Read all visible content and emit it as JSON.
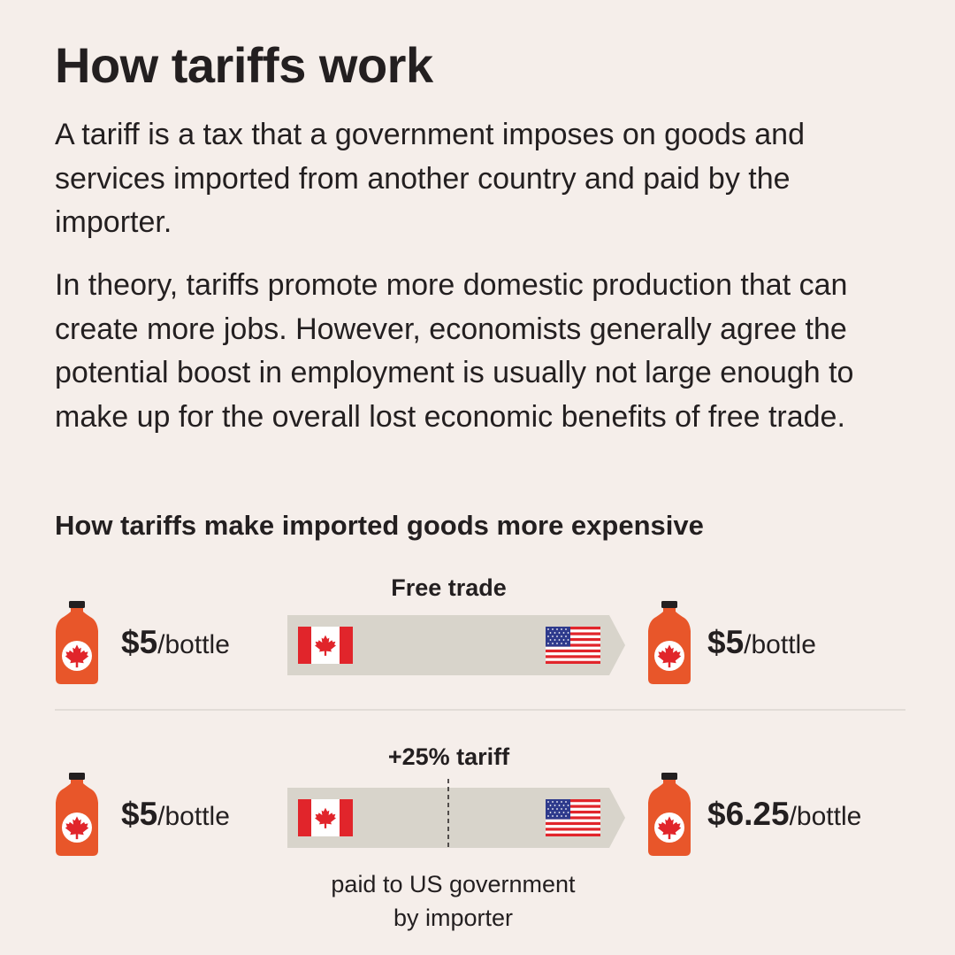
{
  "title": "How tariffs work",
  "paragraphs": [
    "A tariff is a tax that a government imposes on goods and services imported from another country and paid by the importer.",
    "In theory, tariffs promote more domestic production that can create more jobs. However, economists generally agree the potential boost in employment is usually not large enough to make up for the overall lost economic benefits of free trade."
  ],
  "subhead": "How tariffs make imported goods more expensive",
  "rows": [
    {
      "label": "Free trade",
      "left_price": "$5",
      "left_unit": "/bottle",
      "right_price": "$5",
      "right_unit": "/bottle"
    },
    {
      "label": "+25% tariff",
      "left_price": "$5",
      "left_unit": "/bottle",
      "right_price": "$6.25",
      "right_unit": "/bottle",
      "note_line1": "paid to US government",
      "note_line2": "by importer"
    }
  ],
  "colors": {
    "background": "#f5eeea",
    "bottle": "#e8562a",
    "arrow": "#d8d4cb",
    "canada_red": "#e1252b",
    "us_blue": "#2e3a8c"
  },
  "icons": {
    "bottle": "maple-syrup-bottle-icon",
    "origin_flag": "canada-flag-icon",
    "destination_flag": "us-flag-icon"
  }
}
